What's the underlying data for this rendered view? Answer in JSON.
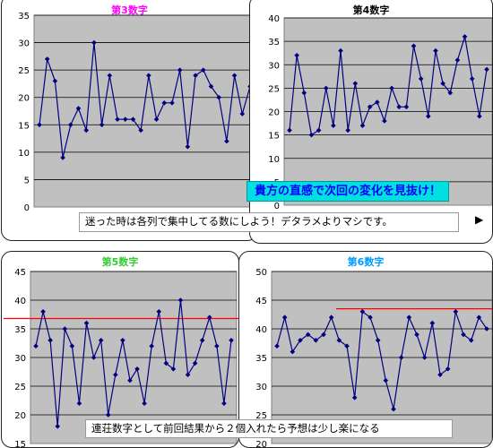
{
  "banner_text": "貴方の直感で次回の変化を見抜け！",
  "note_top": "迷った時は各列で集中してる数にしよう！デタラメよりマシです。",
  "note_bottom": "連荘数字として前回結果から２個入れたら予想は少し楽になる",
  "colors": {
    "line": "#000080",
    "marker": "#000080",
    "plot_bg": "#c0c0c0",
    "threshold": "#ff0000"
  },
  "chart_data": [
    {
      "type": "line",
      "title": "第3数字",
      "title_color": "#ff00ff",
      "ylim": [
        0,
        35
      ],
      "yticks": [
        0,
        5,
        10,
        15,
        20,
        25,
        30,
        35
      ],
      "grid": true,
      "series": [
        {
          "values": [
            15,
            27,
            23,
            9,
            15,
            18,
            14,
            30,
            15,
            24,
            16,
            16,
            16,
            14,
            24,
            16,
            19,
            19,
            25,
            11,
            24,
            25,
            22,
            20,
            12,
            24,
            17,
            22
          ]
        }
      ]
    },
    {
      "type": "line",
      "title": "第4数字",
      "title_color": "#000000",
      "ylim": [
        0,
        40
      ],
      "yticks": [
        0,
        5,
        10,
        15,
        20,
        25,
        30,
        35,
        40
      ],
      "grid": true,
      "series": [
        {
          "values": [
            16,
            32,
            24,
            15,
            16,
            25,
            17,
            33,
            16,
            26,
            17,
            21,
            22,
            18,
            25,
            21,
            21,
            34,
            27,
            19,
            33,
            26,
            24,
            31,
            36,
            27,
            19,
            29
          ]
        }
      ]
    },
    {
      "type": "line",
      "title": "第5数字",
      "title_color": "#33cc33",
      "ylim": [
        15,
        45
      ],
      "yticks": [
        15,
        20,
        25,
        30,
        35,
        40,
        45
      ],
      "grid": true,
      "threshold": 36.8,
      "series": [
        {
          "values": [
            32,
            38,
            33,
            18,
            35,
            32,
            22,
            36,
            30,
            33,
            20,
            27,
            33,
            26,
            28,
            22,
            32,
            38,
            29,
            28,
            40,
            27,
            29,
            33,
            37,
            32,
            22,
            33
          ]
        }
      ]
    },
    {
      "type": "line",
      "title": "第6数字",
      "title_color": "#0099ff",
      "ylim": [
        20,
        50
      ],
      "yticks": [
        20,
        25,
        30,
        35,
        40,
        45,
        50
      ],
      "grid": true,
      "threshold": 43.5,
      "series": [
        {
          "values": [
            37,
            42,
            36,
            38,
            39,
            38,
            39,
            42,
            38,
            37,
            28,
            43,
            42,
            38,
            31,
            26,
            35,
            42,
            39,
            35,
            41,
            32,
            33,
            43,
            39,
            38,
            42,
            40
          ]
        }
      ]
    }
  ]
}
